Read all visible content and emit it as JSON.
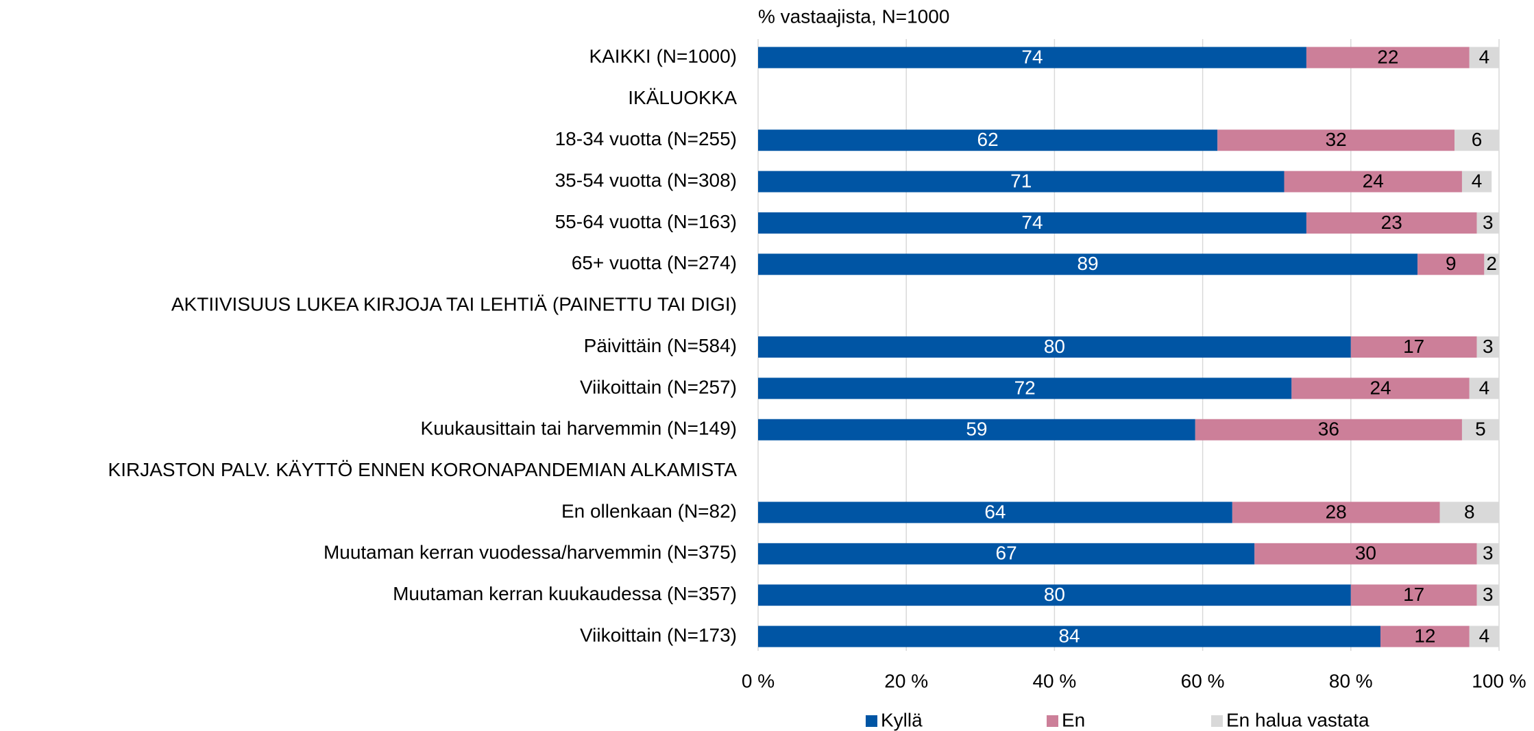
{
  "chart_data": {
    "type": "stacked_barh",
    "title": "% vastaajista, N=1000",
    "categories": [
      "KAIKKI (N=1000)",
      "IKÄLUOKKA",
      "18-34 vuotta (N=255)",
      "35-54 vuotta (N=308)",
      "55-64 vuotta (N=163)",
      "65+ vuotta (N=274)",
      "AKTIIVISUUS LUKEA KIRJOJA TAI LEHTIÄ (PAINETTU TAI DIGI)",
      "Päivittäin (N=584)",
      "Viikoittain (N=257)",
      "Kuukausittain tai harvemmin (N=149)",
      "KIRJASTON PALV. KÄYTTÖ ENNEN KORONAPANDEMIAN ALKAMISTA",
      "En ollenkaan (N=82)",
      "Muutaman kerran vuodessa/harvemmin (N=375)",
      "Muutaman kerran kuukaudessa (N=357)",
      "Viikoittain (N=173)"
    ],
    "series": [
      {
        "name": "Kyllä",
        "color": "#0055a4",
        "values": [
          74,
          null,
          62,
          71,
          74,
          89,
          null,
          80,
          72,
          59,
          null,
          64,
          67,
          80,
          84
        ]
      },
      {
        "name": "En",
        "color": "#cc7f99",
        "values": [
          22,
          null,
          32,
          24,
          23,
          9,
          null,
          17,
          24,
          36,
          null,
          28,
          30,
          17,
          12
        ]
      },
      {
        "name": "En halua vastata",
        "color": "#d9d9d9",
        "values": [
          4,
          null,
          6,
          4,
          3,
          2,
          null,
          3,
          4,
          5,
          null,
          8,
          3,
          3,
          4
        ]
      }
    ],
    "xlim": [
      0,
      100
    ],
    "xticks": [
      {
        "value": 0,
        "label": "0 %"
      },
      {
        "value": 20,
        "label": "20 %"
      },
      {
        "value": 40,
        "label": "40 %"
      },
      {
        "value": 60,
        "label": "60 %"
      },
      {
        "value": 80,
        "label": "80 %"
      },
      {
        "value": 100,
        "label": "100 %"
      }
    ],
    "grid": true,
    "legend": "bottom"
  }
}
